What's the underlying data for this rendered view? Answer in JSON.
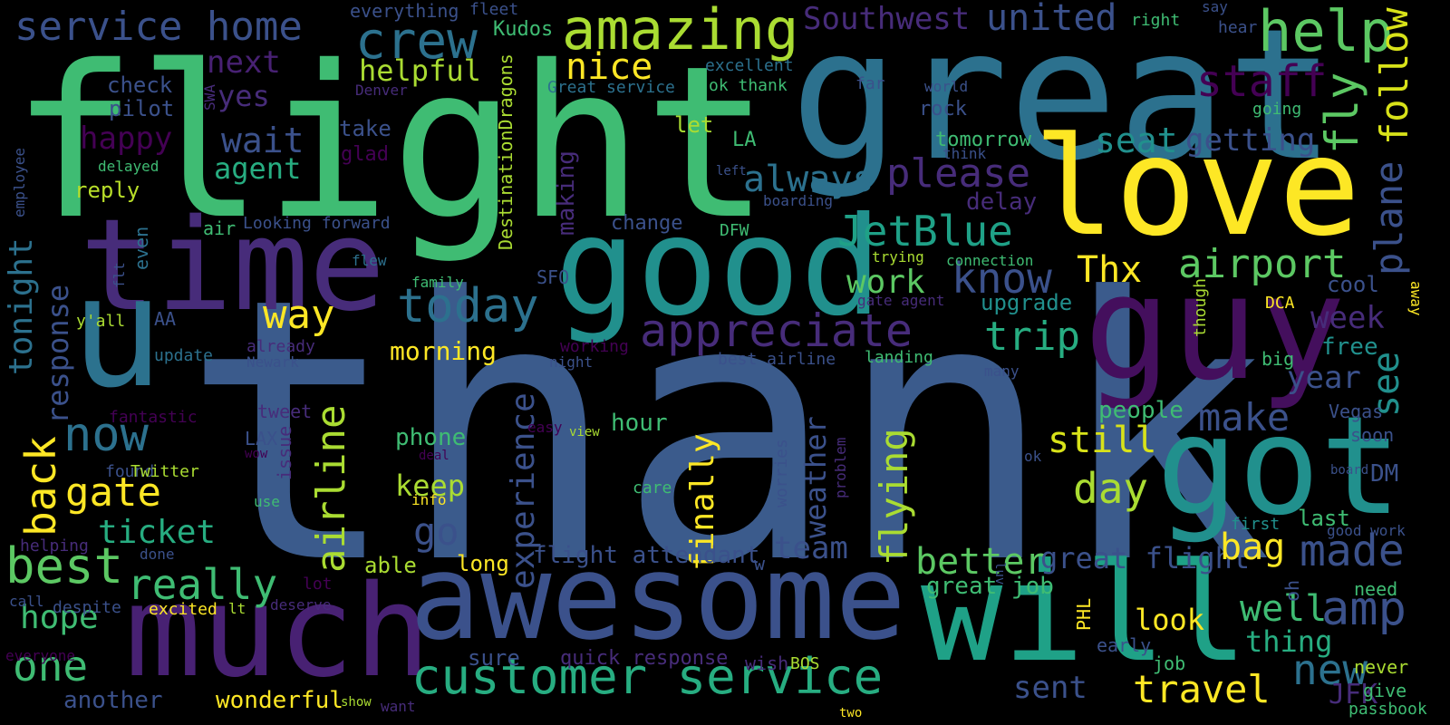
{
  "background": "#000000",
  "palette": [
    "#440154",
    "#472c7a",
    "#3b518b",
    "#2c718e",
    "#21908d",
    "#27ad81",
    "#5cc863",
    "#aadc32",
    "#fde725"
  ],
  "words": [
    {
      "text": "thank",
      "color": "#3b5b8c"
    },
    {
      "text": "flight",
      "color": "#3fbc73"
    },
    {
      "text": "great",
      "color": "#2c718e"
    },
    {
      "text": "love",
      "color": "#fde725"
    },
    {
      "text": "guy",
      "color": "#440f5d"
    },
    {
      "text": "time",
      "color": "#472c7a"
    },
    {
      "text": "good",
      "color": "#21908d"
    },
    {
      "text": "u",
      "color": "#2c728e"
    },
    {
      "text": "got",
      "color": "#21908d"
    },
    {
      "text": "will",
      "color": "#1fa187"
    },
    {
      "text": "much",
      "color": "#482173"
    },
    {
      "text": "awesome",
      "color": "#3b518b"
    },
    {
      "text": "customer service",
      "color": "#27ad81"
    },
    {
      "text": "amazing",
      "color": "#aadc32"
    },
    {
      "text": "crew",
      "color": "#2c718e"
    },
    {
      "text": "help",
      "color": "#5cc863"
    },
    {
      "text": "service home",
      "color": "#3b518b"
    },
    {
      "text": "Southwest",
      "color": "#472c7a"
    },
    {
      "text": "united",
      "color": "#3b518b"
    },
    {
      "text": "staff",
      "color": "#440154"
    },
    {
      "text": "fly",
      "color": "#5cc863"
    },
    {
      "text": "follow",
      "color": "#d8e219"
    },
    {
      "text": "nice",
      "color": "#fde725"
    },
    {
      "text": "helpful",
      "color": "#aadc32"
    },
    {
      "text": "next",
      "color": "#482173"
    },
    {
      "text": "yes",
      "color": "#472c7a"
    },
    {
      "text": "check",
      "color": "#3b518b"
    },
    {
      "text": "pilot",
      "color": "#3b518b"
    },
    {
      "text": "happy",
      "color": "#440154"
    },
    {
      "text": "wait",
      "color": "#3b518b"
    },
    {
      "text": "agent",
      "color": "#27ad81"
    },
    {
      "text": "reply",
      "color": "#b8de29"
    },
    {
      "text": "always",
      "color": "#2c718e"
    },
    {
      "text": "please",
      "color": "#472c7a"
    },
    {
      "text": "seat",
      "color": "#21908d"
    },
    {
      "text": "getting",
      "color": "#3b518b"
    },
    {
      "text": "plane",
      "color": "#3b518b"
    },
    {
      "text": "JetBlue",
      "color": "#1fa187"
    },
    {
      "text": "airport",
      "color": "#5cc863"
    },
    {
      "text": "Thx",
      "color": "#fde725"
    },
    {
      "text": "know",
      "color": "#3b518b"
    },
    {
      "text": "work",
      "color": "#5cc863"
    },
    {
      "text": "today",
      "color": "#2c718e"
    },
    {
      "text": "appreciate",
      "color": "#472c7a"
    },
    {
      "text": "way",
      "color": "#fde725"
    },
    {
      "text": "trip",
      "color": "#27ad81"
    },
    {
      "text": "upgrade",
      "color": "#21908d"
    },
    {
      "text": "week",
      "color": "#472c7a"
    },
    {
      "text": "see",
      "color": "#21908d"
    },
    {
      "text": "free",
      "color": "#21908d"
    },
    {
      "text": "cool",
      "color": "#3b518b"
    },
    {
      "text": "year",
      "color": "#3b518b"
    },
    {
      "text": "tonight",
      "color": "#2c718e"
    },
    {
      "text": "response",
      "color": "#3b518b"
    },
    {
      "text": "back",
      "color": "#fde725"
    },
    {
      "text": "now",
      "color": "#2c718e"
    },
    {
      "text": "best",
      "color": "#5cc863"
    },
    {
      "text": "gate",
      "color": "#fde725"
    },
    {
      "text": "ticket",
      "color": "#27ad81"
    },
    {
      "text": "really",
      "color": "#3fbc73"
    },
    {
      "text": "airline",
      "color": "#aadc32"
    },
    {
      "text": "experience",
      "color": "#3b518b"
    },
    {
      "text": "finally",
      "color": "#fde725"
    },
    {
      "text": "weather",
      "color": "#3b518b"
    },
    {
      "text": "flying",
      "color": "#aadc32"
    },
    {
      "text": "still",
      "color": "#d8e219"
    },
    {
      "text": "make",
      "color": "#3b518b"
    },
    {
      "text": "day",
      "color": "#aadc32"
    },
    {
      "text": "morning",
      "color": "#fde725"
    },
    {
      "text": "phone",
      "color": "#3fbc73"
    },
    {
      "text": "keep",
      "color": "#aadc32"
    },
    {
      "text": "go",
      "color": "#3b518b"
    },
    {
      "text": "hour",
      "color": "#3fbc73"
    },
    {
      "text": "team",
      "color": "#3b518b"
    },
    {
      "text": "better",
      "color": "#5cc863"
    },
    {
      "text": "great flight",
      "color": "#3b518b"
    },
    {
      "text": "bag",
      "color": "#fde725"
    },
    {
      "text": "made",
      "color": "#3b518b"
    },
    {
      "text": "amp",
      "color": "#3b518b"
    },
    {
      "text": "well",
      "color": "#3fbc73"
    },
    {
      "text": "thing",
      "color": "#27ad81"
    },
    {
      "text": "look",
      "color": "#fde725"
    },
    {
      "text": "new",
      "color": "#2c718e"
    },
    {
      "text": "travel",
      "color": "#fde725"
    },
    {
      "text": "sent",
      "color": "#3b518b"
    },
    {
      "text": "JFK",
      "color": "#472c7a"
    },
    {
      "text": "flight attendant",
      "color": "#3b518b"
    },
    {
      "text": "hope",
      "color": "#3fbc73"
    },
    {
      "text": "one",
      "color": "#3fbc73"
    },
    {
      "text": "another",
      "color": "#3b518b"
    },
    {
      "text": "wonderful",
      "color": "#fde725"
    },
    {
      "text": "quick response",
      "color": "#472c7a"
    },
    {
      "text": "sure",
      "color": "#3b518b"
    },
    {
      "text": "great job",
      "color": "#3fbc73"
    },
    {
      "text": "people",
      "color": "#3fbc73"
    },
    {
      "text": "DM",
      "color": "#3b518b"
    },
    {
      "text": "last",
      "color": "#3fbc73"
    },
    {
      "text": "first",
      "color": "#21908d"
    },
    {
      "text": "long",
      "color": "#fde725"
    },
    {
      "text": "able",
      "color": "#aadc32"
    },
    {
      "text": "wish",
      "color": "#472c7a"
    },
    {
      "text": "BOS",
      "color": "#aadc32"
    },
    {
      "text": "job",
      "color": "#3fbc73"
    },
    {
      "text": "early",
      "color": "#3b518b"
    },
    {
      "text": "PHL",
      "color": "#fde725"
    },
    {
      "text": "never",
      "color": "#aadc32"
    },
    {
      "text": "give",
      "color": "#3fbc73"
    },
    {
      "text": "need",
      "color": "#3fbc73"
    },
    {
      "text": "passbook",
      "color": "#3fbc73"
    },
    {
      "text": "oh",
      "color": "#3b518b"
    },
    {
      "text": "good work",
      "color": "#3b518b"
    },
    {
      "text": "soon",
      "color": "#3b518b"
    },
    {
      "text": "Vegas",
      "color": "#3b518b"
    },
    {
      "text": "big",
      "color": "#3fbc73"
    },
    {
      "text": "DCA",
      "color": "#fde725"
    },
    {
      "text": "away",
      "color": "#fde725"
    },
    {
      "text": "though",
      "color": "#aadc32"
    },
    {
      "text": "everything",
      "color": "#3b518b"
    },
    {
      "text": "fleet",
      "color": "#3b518b"
    },
    {
      "text": "Kudos",
      "color": "#3fbc73"
    },
    {
      "text": "excellent",
      "color": "#2c718e"
    },
    {
      "text": "Great service",
      "color": "#2c718e"
    },
    {
      "text": "ok thank",
      "color": "#3fbc73"
    },
    {
      "text": "Denver",
      "color": "#472c7a"
    },
    {
      "text": "SWA",
      "color": "#472c7a"
    },
    {
      "text": "right",
      "color": "#3fbc73"
    },
    {
      "text": "say",
      "color": "#3b518b"
    },
    {
      "text": "hear",
      "color": "#3b518b"
    },
    {
      "text": "far",
      "color": "#3b518b"
    },
    {
      "text": "world",
      "color": "#3b518b"
    },
    {
      "text": "going",
      "color": "#3fbc73"
    },
    {
      "text": "think",
      "color": "#3b518b"
    },
    {
      "text": "rock",
      "color": "#3b518b"
    },
    {
      "text": "tomorrow",
      "color": "#3fbc73"
    },
    {
      "text": "delay",
      "color": "#472c7a"
    },
    {
      "text": "boarding",
      "color": "#3b518b"
    },
    {
      "text": "left",
      "color": "#3b518b"
    },
    {
      "text": "take",
      "color": "#3b518b"
    },
    {
      "text": "glad",
      "color": "#440154"
    },
    {
      "text": "let",
      "color": "#aadc32"
    },
    {
      "text": "LA",
      "color": "#3fbc73"
    },
    {
      "text": "DestinationDragons",
      "color": "#aadc32"
    },
    {
      "text": "making",
      "color": "#472c7a"
    },
    {
      "text": "change",
      "color": "#3b518b"
    },
    {
      "text": "DFW",
      "color": "#3fbc73"
    },
    {
      "text": "SFO",
      "color": "#3b518b"
    },
    {
      "text": "trying",
      "color": "#aadc32"
    },
    {
      "text": "connection",
      "color": "#3fbc73"
    },
    {
      "text": "gate agent",
      "color": "#472c7a"
    },
    {
      "text": "employee",
      "color": "#3b518b"
    },
    {
      "text": "delayed",
      "color": "#3fbc73"
    },
    {
      "text": "air",
      "color": "#3fbc73"
    },
    {
      "text": "Looking forward",
      "color": "#3b518b"
    },
    {
      "text": "even",
      "color": "#2c718e"
    },
    {
      "text": "flew",
      "color": "#2c718e"
    },
    {
      "text": "flt",
      "color": "#3b518b"
    },
    {
      "text": "family",
      "color": "#3fbc73"
    },
    {
      "text": "y'all",
      "color": "#aadc32"
    },
    {
      "text": "AA",
      "color": "#3b518b"
    },
    {
      "text": "update",
      "color": "#2c718e"
    },
    {
      "text": "already",
      "color": "#472c7a"
    },
    {
      "text": "Newark",
      "color": "#3b518b"
    },
    {
      "text": "working",
      "color": "#440154"
    },
    {
      "text": "night",
      "color": "#3b518b"
    },
    {
      "text": "best airline",
      "color": "#3b518b"
    },
    {
      "text": "landing",
      "color": "#3fbc73"
    },
    {
      "text": "many",
      "color": "#3b518b"
    },
    {
      "text": "fantastic",
      "color": "#440154"
    },
    {
      "text": "tweet",
      "color": "#472c7a"
    },
    {
      "text": "LAX",
      "color": "#3b518b"
    },
    {
      "text": "wow",
      "color": "#440154"
    },
    {
      "text": "issue",
      "color": "#472c7a"
    },
    {
      "text": "found",
      "color": "#3b518b"
    },
    {
      "text": "Twitter",
      "color": "#aadc32"
    },
    {
      "text": "deal",
      "color": "#440154"
    },
    {
      "text": "easy",
      "color": "#440154"
    },
    {
      "text": "view",
      "color": "#aadc32"
    },
    {
      "text": "info",
      "color": "#fde725"
    },
    {
      "text": "care",
      "color": "#3fbc73"
    },
    {
      "text": "worries",
      "color": "#3b518b"
    },
    {
      "text": "problem",
      "color": "#472c7a"
    },
    {
      "text": "ok",
      "color": "#3b518b"
    },
    {
      "text": "board",
      "color": "#3b518b"
    },
    {
      "text": "luv",
      "color": "#3b518b"
    },
    {
      "text": "use",
      "color": "#3fbc73"
    },
    {
      "text": "helping",
      "color": "#472c7a"
    },
    {
      "text": "done",
      "color": "#3b518b"
    },
    {
      "text": "call",
      "color": "#3b518b"
    },
    {
      "text": "despite",
      "color": "#3b518b"
    },
    {
      "text": "excited",
      "color": "#fde725"
    },
    {
      "text": "lt",
      "color": "#aadc32"
    },
    {
      "text": "lot",
      "color": "#440154"
    },
    {
      "text": "deserve",
      "color": "#472c7a"
    },
    {
      "text": "everyone",
      "color": "#440154"
    },
    {
      "text": "w",
      "color": "#3b518b"
    },
    {
      "text": "show",
      "color": "#aadc32"
    },
    {
      "text": "want",
      "color": "#472c7a"
    },
    {
      "text": "two",
      "color": "#fde725"
    }
  ]
}
